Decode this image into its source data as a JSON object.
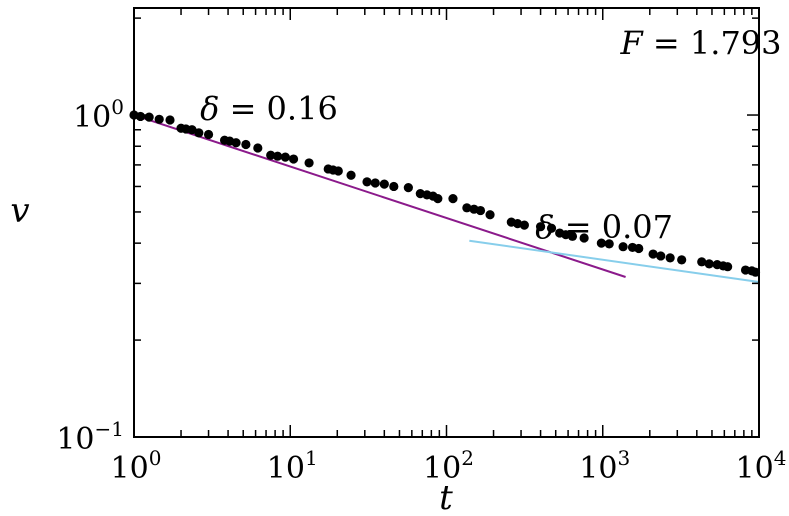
{
  "chart_data": {
    "type": "scatter",
    "xscale": "log",
    "yscale": "log",
    "xlim": [
      1,
      10000
    ],
    "ylim": [
      0.1,
      2.15
    ],
    "xlabel": "t",
    "ylabel": "v",
    "x_ticks": [
      {
        "base": "10",
        "exp": "0",
        "value": 1
      },
      {
        "base": "10",
        "exp": "1",
        "value": 10
      },
      {
        "base": "10",
        "exp": "2",
        "value": 100
      },
      {
        "base": "10",
        "exp": "3",
        "value": 1000
      },
      {
        "base": "10",
        "exp": "4",
        "value": 10000
      }
    ],
    "y_ticks": [
      {
        "base": "10",
        "exp": "0",
        "value": 1
      },
      {
        "base": "10",
        "exp": "−1",
        "value": 0.1
      }
    ],
    "annotations": [
      {
        "symbol": "F",
        "rest": " = 1.793",
        "anchor_x": 1300,
        "anchor_y": 1.55
      },
      {
        "symbol": "δ",
        "rest": " = 0.16",
        "anchor_x": 2.65,
        "anchor_y": 0.97
      },
      {
        "symbol": "δ",
        "rest": " = 0.07",
        "anchor_x": 370,
        "anchor_y": 0.415
      }
    ],
    "fit_lines": [
      {
        "label": "δ = 0.16",
        "slope": -0.16,
        "x": [
          1,
          1400
        ],
        "y": [
          1.0,
          0.314
        ],
        "color": "#8b1a8b"
      },
      {
        "label": "δ = 0.07",
        "slope": -0.07,
        "x": [
          140,
          10000
        ],
        "y": [
          0.407,
          0.303
        ],
        "color": "#87ceeb"
      }
    ],
    "series": [
      {
        "color": "#000000",
        "points": [
          [
            1.0,
            1.0
          ],
          [
            1.1,
            0.99
          ],
          [
            1.25,
            0.985
          ],
          [
            1.45,
            0.97
          ],
          [
            1.7,
            0.965
          ],
          [
            2.0,
            0.91
          ],
          [
            2.15,
            0.905
          ],
          [
            2.35,
            0.9
          ],
          [
            2.6,
            0.88
          ],
          [
            3.0,
            0.87
          ],
          [
            3.8,
            0.835
          ],
          [
            4.1,
            0.83
          ],
          [
            4.5,
            0.82
          ],
          [
            5.2,
            0.81
          ],
          [
            6.2,
            0.79
          ],
          [
            7.5,
            0.75
          ],
          [
            8.3,
            0.745
          ],
          [
            9.3,
            0.74
          ],
          [
            10.5,
            0.73
          ],
          [
            13.2,
            0.71
          ],
          [
            17.5,
            0.68
          ],
          [
            18.8,
            0.675
          ],
          [
            20.3,
            0.67
          ],
          [
            24.5,
            0.65
          ],
          [
            31.0,
            0.62
          ],
          [
            35.0,
            0.615
          ],
          [
            40.0,
            0.61
          ],
          [
            46.0,
            0.6
          ],
          [
            57.0,
            0.595
          ],
          [
            68.0,
            0.57
          ],
          [
            75.0,
            0.565
          ],
          [
            82.0,
            0.56
          ],
          [
            88.0,
            0.55
          ],
          [
            110.0,
            0.55
          ],
          [
            135.0,
            0.515
          ],
          [
            150.0,
            0.51
          ],
          [
            165.0,
            0.505
          ],
          [
            190.0,
            0.49
          ],
          [
            260.0,
            0.465
          ],
          [
            285.0,
            0.46
          ],
          [
            315.0,
            0.455
          ],
          [
            400.0,
            0.45
          ],
          [
            470.0,
            0.445
          ],
          [
            530.0,
            0.43
          ],
          [
            580.0,
            0.425
          ],
          [
            640.0,
            0.42
          ],
          [
            760.0,
            0.415
          ],
          [
            980.0,
            0.4
          ],
          [
            1100.0,
            0.398
          ],
          [
            1350.0,
            0.39
          ],
          [
            1550.0,
            0.388
          ],
          [
            1700.0,
            0.385
          ],
          [
            2100.0,
            0.37
          ],
          [
            2350.0,
            0.365
          ],
          [
            2700.0,
            0.36
          ],
          [
            3200.0,
            0.355
          ],
          [
            4300.0,
            0.35
          ],
          [
            4800.0,
            0.345
          ],
          [
            5400.0,
            0.343
          ],
          [
            5900.0,
            0.34
          ],
          [
            6300.0,
            0.338
          ],
          [
            8200.0,
            0.33
          ],
          [
            9000.0,
            0.328
          ],
          [
            9500.0,
            0.325
          ]
        ]
      }
    ]
  }
}
